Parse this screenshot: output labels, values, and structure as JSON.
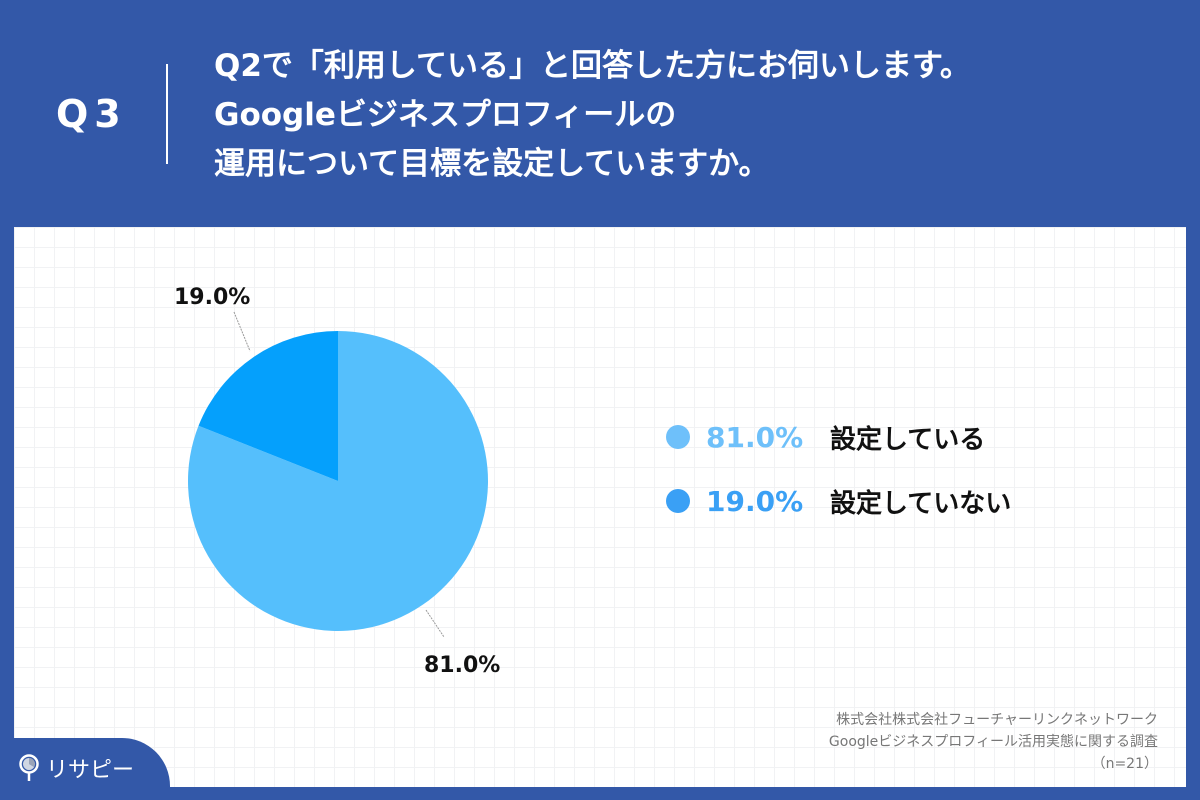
{
  "header": {
    "question_number": "Q3",
    "title_lines": [
      "Q2で「利用している」と回答した方にお伺いします。",
      "Googleビジネスプロフィールの",
      "運用について目標を設定していますか。"
    ]
  },
  "colors": {
    "background": "#3358a8",
    "panel": "#ffffff",
    "slice_set": "#55bffc",
    "slice_not_set": "#05a0fc",
    "legend_dot_set": "#6ec0fa",
    "legend_dot_not_set": "#3aa0f5",
    "legend_pct_set": "#6ec0fa",
    "legend_pct_not_set": "#3aa0f5"
  },
  "chart_data": {
    "type": "pie",
    "title": "Googleビジネスプロフィールの運用について目標を設定していますか。",
    "categories": [
      "設定している",
      "設定していない"
    ],
    "values": [
      81.0,
      19.0
    ],
    "labels": [
      "81.0%",
      "19.0%"
    ],
    "start_angle_deg": 0,
    "direction": "clockwise",
    "legend_position": "right",
    "n": 21
  },
  "pie": {
    "label_set": "81.0%",
    "label_not_set": "19.0%"
  },
  "legend": {
    "items": [
      {
        "pct": "81.0%",
        "label": "設定している"
      },
      {
        "pct": "19.0%",
        "label": "設定していない"
      }
    ]
  },
  "source": {
    "line1": "株式会社株式会社フューチャーリンクネットワーク",
    "line2": "Googleビジネスプロフィール活用実態に関する調査",
    "line3": "（n=21）"
  },
  "logo": {
    "text": "リサピー"
  }
}
